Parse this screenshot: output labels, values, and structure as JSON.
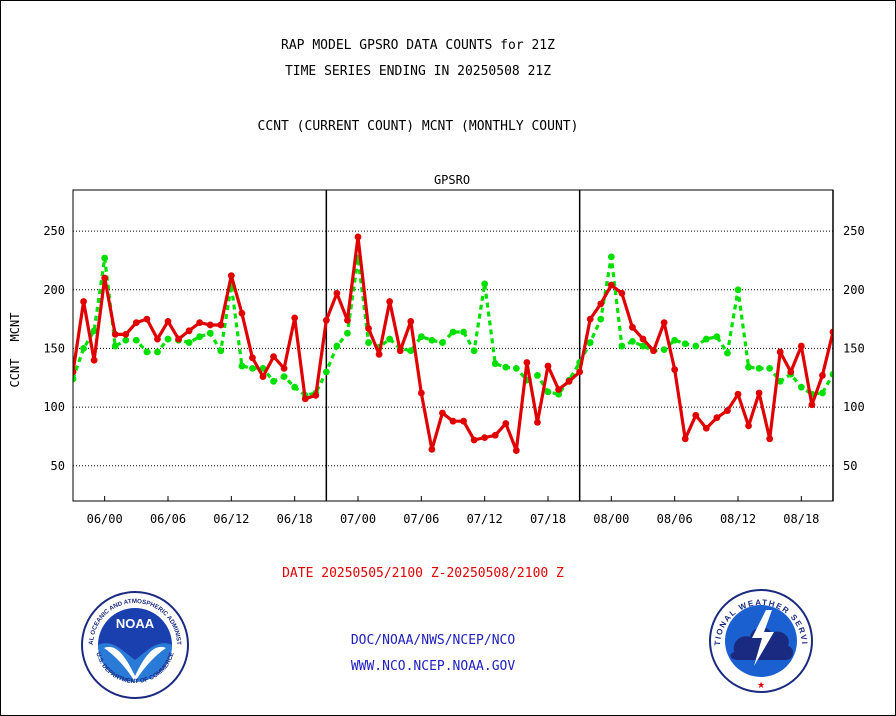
{
  "header": {
    "title_line1": "RAP MODEL GPSRO DATA COUNTS for 21Z",
    "title_line2": "TIME SERIES ENDING IN 20250508 21Z",
    "legend_line": "CCNT (CURRENT COUNT) MCNT (MONTHLY COUNT)"
  },
  "footer": {
    "date_range": "DATE 20250505/2100 Z-20250508/2100 Z",
    "org_path": "DOC/NOAA/NWS/NCEP/NCO",
    "website": "WWW.NCO.NCEP.NOAA.GOV"
  },
  "logos": {
    "noaa_center": "NOAA",
    "noaa_ring": "NATIONAL OCEANIC AND ATMOSPHERIC ADMINISTRATION",
    "noaa_ring_bottom": "U.S. DEPARTMENT OF COMMERCE",
    "nws_ring": "NATIONAL WEATHER SERVICE"
  },
  "chart_data": {
    "type": "line",
    "title": "GPSRO",
    "ylabel_left": "CCNT",
    "ylabel_right": "MCNT",
    "ylim": [
      20,
      285
    ],
    "yticks": [
      50,
      100,
      150,
      200,
      250
    ],
    "xlim": [
      -3,
      69
    ],
    "xticks": [
      {
        "x": 0,
        "label": "06/00"
      },
      {
        "x": 6,
        "label": "06/06"
      },
      {
        "x": 12,
        "label": "06/12"
      },
      {
        "x": 18,
        "label": "06/18"
      },
      {
        "x": 24,
        "label": "07/00"
      },
      {
        "x": 30,
        "label": "07/06"
      },
      {
        "x": 36,
        "label": "07/12"
      },
      {
        "x": 42,
        "label": "07/18"
      },
      {
        "x": 48,
        "label": "08/00"
      },
      {
        "x": 54,
        "label": "08/06"
      },
      {
        "x": 60,
        "label": "08/12"
      },
      {
        "x": 66,
        "label": "08/18"
      }
    ],
    "day_dividers": [
      21,
      45,
      69
    ],
    "grid": "horizontal-dotted",
    "colors": {
      "ccnt": "#e00000",
      "mcnt": "#00e000",
      "title": "#2020c0"
    },
    "x": [
      -3,
      -2,
      -1,
      0,
      1,
      2,
      3,
      4,
      5,
      6,
      7,
      8,
      9,
      10,
      11,
      12,
      13,
      14,
      15,
      16,
      17,
      18,
      19,
      20,
      21,
      22,
      23,
      24,
      25,
      26,
      27,
      28,
      29,
      30,
      31,
      32,
      33,
      34,
      35,
      36,
      37,
      38,
      39,
      40,
      41,
      42,
      43,
      44,
      45,
      46,
      47,
      48,
      49,
      50,
      51,
      52,
      53,
      54,
      55,
      56,
      57,
      58,
      59,
      60,
      61,
      62,
      63,
      64,
      65,
      66,
      67,
      68,
      69
    ],
    "series": [
      {
        "name": "CCNT",
        "values": [
          130,
          190,
          140,
          210,
          162,
          162,
          172,
          175,
          158,
          173,
          158,
          165,
          172,
          170,
          170,
          212,
          180,
          142,
          126,
          143,
          133,
          176,
          107,
          110,
          174,
          197,
          174,
          245,
          167,
          145,
          190,
          148,
          173,
          112,
          64,
          95,
          88,
          88,
          72,
          74,
          76,
          86,
          63,
          138,
          87,
          135,
          115,
          122,
          130,
          175,
          188,
          204,
          197,
          168,
          158,
          148,
          172,
          132,
          73,
          93,
          82,
          91,
          97,
          111,
          84,
          112,
          73,
          147,
          130,
          152,
          102,
          127,
          164
        ]
      },
      {
        "name": "MCNT",
        "values": [
          124,
          150,
          165,
          227,
          152,
          157,
          157,
          147,
          147,
          158,
          157,
          155,
          160,
          163,
          148,
          204,
          135,
          133,
          133,
          122,
          126,
          117,
          110,
          112,
          130,
          152,
          163,
          227,
          155,
          151,
          158,
          150,
          148,
          160,
          157,
          155,
          164,
          164,
          148,
          205,
          137,
          134,
          133,
          123,
          127,
          113,
          111,
          123,
          138,
          155,
          175,
          228,
          152,
          156,
          152,
          148,
          149,
          157,
          154,
          152,
          158,
          160,
          146,
          200,
          134,
          133,
          133,
          122,
          128,
          117,
          111,
          112,
          128
        ]
      }
    ]
  }
}
